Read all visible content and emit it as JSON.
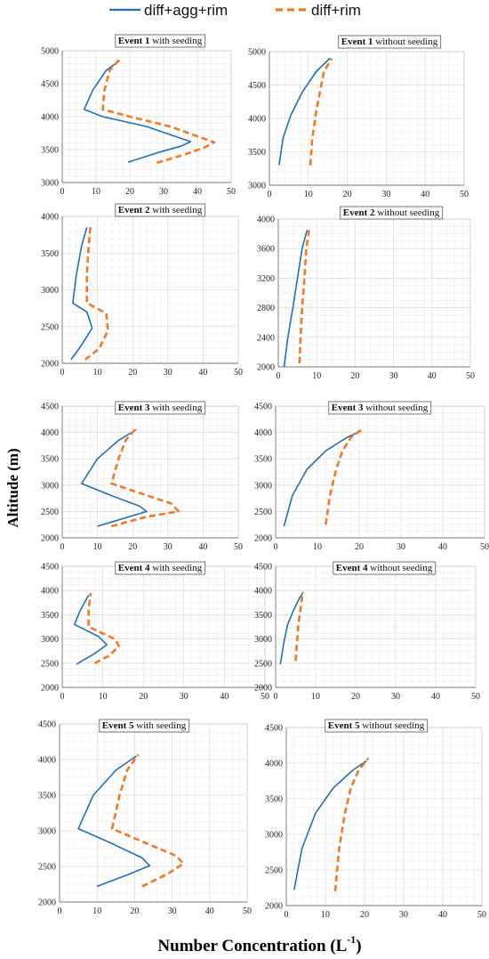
{
  "legend": {
    "series1": "diff+agg+rim",
    "series2": "diff+rim",
    "color1": "#1f6fc0",
    "color2": "#f07a24"
  },
  "axes": {
    "ylabel": "Altitude (m)",
    "xlabel_main": "Number Concentration (L",
    "xlabel_exp": "-1",
    "xlabel_close": ")"
  },
  "chart_data": [
    {
      "type": "line",
      "title_bold": "Event 1",
      "title_rest": " with seeding",
      "xlim": [
        0,
        50
      ],
      "xticks": [
        "0",
        "10",
        "20",
        "30",
        "40",
        "50"
      ],
      "ylim": [
        3000,
        5000
      ],
      "yticks": [
        "3000",
        "3500",
        "4000",
        "4500",
        "5000"
      ],
      "grid": true,
      "series": [
        {
          "x": [
            19.5,
            28,
            35,
            38,
            25,
            12,
            6.5,
            9,
            13,
            17
          ],
          "y": [
            3310,
            3450,
            3550,
            3620,
            3850,
            4000,
            4110,
            4400,
            4700,
            4850
          ]
        },
        {
          "x": [
            28,
            36,
            42,
            45,
            32,
            20,
            12,
            12.5,
            14,
            17.5
          ],
          "y": [
            3300,
            3420,
            3530,
            3610,
            3850,
            4000,
            4110,
            4400,
            4700,
            4900
          ]
        }
      ]
    },
    {
      "type": "line",
      "title_bold": "Event 1",
      "title_rest": " without seeding",
      "xlim": [
        0,
        50
      ],
      "xticks": [
        "0",
        "10",
        "20",
        "30",
        "40",
        "50"
      ],
      "ylim": [
        3000,
        5000
      ],
      "yticks": [
        "3000",
        "3500",
        "4000",
        "4500",
        "5000"
      ],
      "grid": true,
      "series": [
        {
          "x": [
            2.5,
            3.5,
            5.5,
            8.5,
            12,
            15.5
          ],
          "y": [
            3300,
            3700,
            4050,
            4400,
            4700,
            4900
          ]
        },
        {
          "x": [
            10.5,
            11,
            12,
            13,
            14,
            16
          ],
          "y": [
            3300,
            3700,
            4100,
            4400,
            4700,
            4900
          ]
        }
      ]
    },
    {
      "type": "line",
      "title_bold": "Event 2",
      "title_rest": " with seeding",
      "xlim": [
        0,
        50
      ],
      "xticks": [
        "0",
        "10",
        "20",
        "30",
        "40",
        "50"
      ],
      "ylim": [
        2000,
        4000
      ],
      "yticks": [
        "2000",
        "2500",
        "3000",
        "3500",
        "4000"
      ],
      "grid": true,
      "series": [
        {
          "x": [
            2.5,
            5.5,
            8.5,
            7,
            3,
            4,
            5.5,
            7
          ],
          "y": [
            2050,
            2250,
            2480,
            2700,
            2820,
            3200,
            3600,
            3850
          ]
        },
        {
          "x": [
            6.5,
            10.5,
            13,
            12.5,
            7,
            7,
            7.5,
            8
          ],
          "y": [
            2050,
            2200,
            2450,
            2680,
            2820,
            3200,
            3600,
            3850
          ]
        }
      ]
    },
    {
      "type": "line",
      "title_bold": "Event 2",
      "title_rest": " without seeding",
      "xlim": [
        0,
        50
      ],
      "xticks": [
        "0",
        "10",
        "20",
        "30",
        "40",
        "50"
      ],
      "ylim": [
        2000,
        4000
      ],
      "yticks": [
        "2000",
        "2400",
        "2800",
        "3200",
        "3600",
        "4000"
      ],
      "grid": true,
      "series": [
        {
          "x": [
            1.5,
            2.5,
            3.8,
            5,
            6.2,
            7.5
          ],
          "y": [
            2000,
            2400,
            2800,
            3200,
            3600,
            3850
          ]
        },
        {
          "x": [
            5.5,
            5.8,
            6.2,
            6.8,
            7.3,
            8
          ],
          "y": [
            2050,
            2400,
            2800,
            3200,
            3600,
            3850
          ]
        }
      ]
    },
    {
      "type": "line",
      "title_bold": "Event 3",
      "title_rest": " with seeding",
      "xlim": [
        0,
        50
      ],
      "xticks": [
        "0",
        "10",
        "20",
        "30",
        "40",
        "50"
      ],
      "ylim": [
        2000,
        4500
      ],
      "yticks": [
        "2000",
        "2500",
        "3000",
        "3500",
        "4000",
        "4500"
      ],
      "grid": true,
      "series": [
        {
          "x": [
            10,
            18,
            24,
            22,
            14,
            5.5,
            10,
            16,
            21
          ],
          "y": [
            2220,
            2380,
            2500,
            2600,
            2800,
            3030,
            3500,
            3850,
            4050
          ]
        },
        {
          "x": [
            14,
            24,
            33,
            31,
            22,
            14,
            16,
            18,
            21
          ],
          "y": [
            2220,
            2400,
            2500,
            2650,
            2850,
            3030,
            3500,
            3850,
            4080
          ]
        }
      ]
    },
    {
      "type": "line",
      "title_bold": "Event 3",
      "title_rest": " without seeding",
      "xlim": [
        0,
        50
      ],
      "xticks": [
        "0",
        "10",
        "20",
        "30",
        "40",
        "50"
      ],
      "ylim": [
        2000,
        4500
      ],
      "yticks": [
        "2000",
        "2500",
        "3000",
        "3500",
        "4000",
        "4500"
      ],
      "grid": true,
      "series": [
        {
          "x": [
            2,
            4,
            7.5,
            12,
            17,
            20.5
          ],
          "y": [
            2220,
            2800,
            3300,
            3650,
            3900,
            4030
          ]
        },
        {
          "x": [
            12,
            13,
            14.5,
            16,
            18,
            21
          ],
          "y": [
            2250,
            2800,
            3300,
            3650,
            3900,
            4080
          ]
        }
      ]
    },
    {
      "type": "line",
      "title_bold": "Event 4",
      "title_rest": " with seeding",
      "xlim": [
        0,
        50
      ],
      "xticks": [
        "0",
        "10",
        "20",
        "30",
        "40",
        "50"
      ],
      "ylim": [
        2000,
        4500
      ],
      "yticks": [
        "2000",
        "2500",
        "3000",
        "3500",
        "4000",
        "4500"
      ],
      "grid": true,
      "series": [
        {
          "x": [
            3.5,
            8,
            11,
            9,
            3,
            4.5,
            6.5
          ],
          "y": [
            2480,
            2700,
            2880,
            3050,
            3300,
            3600,
            3900
          ]
        },
        {
          "x": [
            8,
            11.5,
            14,
            13,
            6.5,
            6.5,
            7
          ],
          "y": [
            2500,
            2650,
            2850,
            3000,
            3250,
            3600,
            3950
          ]
        }
      ]
    },
    {
      "type": "line",
      "title_bold": "Event 4",
      "title_rest": " without seeding",
      "xlim": [
        0,
        50
      ],
      "xticks": [
        "0",
        "10",
        "20",
        "30",
        "40",
        "50"
      ],
      "ylim": [
        2000,
        4500
      ],
      "yticks": [
        "2000",
        "2500",
        "3000",
        "3500",
        "4000",
        "4500"
      ],
      "grid": true,
      "series": [
        {
          "x": [
            1.2,
            2,
            3,
            4.5,
            6,
            6.8
          ],
          "y": [
            2480,
            2900,
            3300,
            3600,
            3850,
            3950
          ]
        },
        {
          "x": [
            5,
            5.3,
            5.7,
            6.2,
            6.6,
            7
          ],
          "y": [
            2550,
            2900,
            3300,
            3600,
            3850,
            3970
          ]
        }
      ]
    },
    {
      "type": "line",
      "title_bold": "Event 5",
      "title_rest": " with seeding",
      "xlim": [
        0,
        50
      ],
      "xticks": [
        "0",
        "10",
        "20",
        "30",
        "40",
        "50"
      ],
      "ylim": [
        2000,
        4500
      ],
      "yticks": [
        "2000",
        "2500",
        "3000",
        "3500",
        "4000",
        "4500"
      ],
      "grid": true,
      "series": [
        {
          "x": [
            10,
            18,
            24,
            22,
            14,
            5,
            9,
            15,
            20.5
          ],
          "y": [
            2220,
            2380,
            2510,
            2620,
            2820,
            3030,
            3500,
            3850,
            4050
          ]
        },
        {
          "x": [
            22,
            29,
            33,
            31,
            22,
            14,
            16,
            18,
            21
          ],
          "y": [
            2220,
            2400,
            2540,
            2650,
            2850,
            3030,
            3500,
            3850,
            4070
          ]
        }
      ]
    },
    {
      "type": "line",
      "title_bold": "Event 5",
      "title_rest": " without seeding",
      "xlim": [
        0,
        50
      ],
      "xticks": [
        "0",
        "10",
        "20",
        "30",
        "40",
        "50"
      ],
      "ylim": [
        2000,
        4500
      ],
      "yticks": [
        "2000",
        "2500",
        "3000",
        "3500",
        "4000",
        "4500"
      ],
      "grid": true,
      "series": [
        {
          "x": [
            2,
            4,
            7.5,
            12,
            17,
            20.5
          ],
          "y": [
            2220,
            2800,
            3300,
            3650,
            3900,
            4030
          ]
        },
        {
          "x": [
            12.5,
            13.5,
            15,
            16.5,
            18.5,
            21
          ],
          "y": [
            2200,
            2800,
            3300,
            3650,
            3900,
            4070
          ]
        }
      ]
    }
  ]
}
